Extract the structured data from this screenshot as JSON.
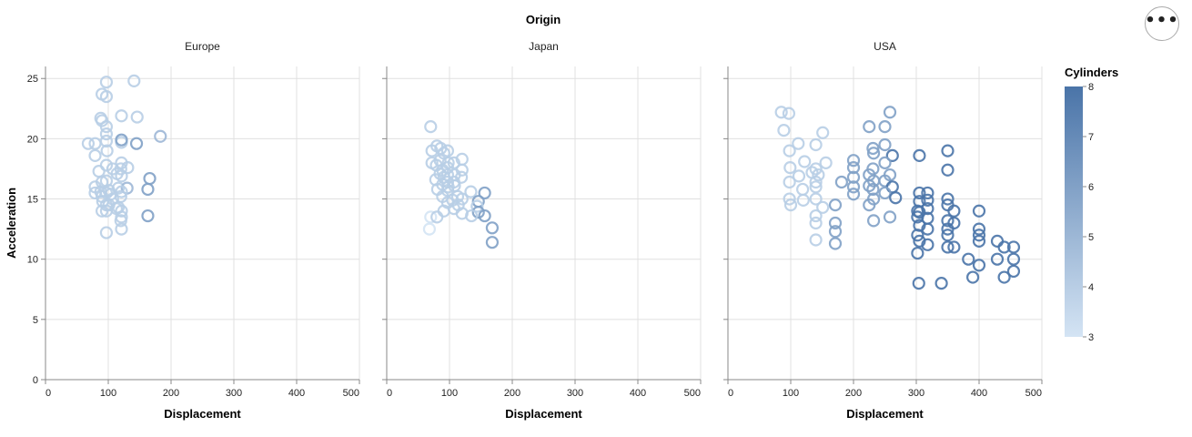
{
  "menu": {
    "icon": "ellipsis-icon",
    "glyph": "•••"
  },
  "chart_data": {
    "type": "scatter",
    "title": "Origin",
    "facet_field": "Origin",
    "facets": [
      "Europe",
      "Japan",
      "USA"
    ],
    "xlabel": "Displacement",
    "ylabel": "Acceleration",
    "xlim": [
      0,
      500
    ],
    "ylim": [
      0,
      26
    ],
    "x_ticks": [
      0,
      100,
      200,
      300,
      400,
      500
    ],
    "y_ticks": [
      0,
      5,
      10,
      15,
      20,
      25
    ],
    "grid": true,
    "color_field": "Cylinders",
    "legend": {
      "title": "Cylinders",
      "ticks": [
        3,
        4,
        5,
        6,
        7,
        8
      ],
      "domain": [
        3,
        8
      ],
      "placement": "right"
    },
    "colors": {
      "low": "#d4e4f4",
      "high": "#4a74a8",
      "axis": "#888888",
      "grid": "#e0e0e0"
    },
    "series": [
      {
        "facet": "Europe",
        "points": [
          [
            97,
            24.7,
            4
          ],
          [
            141,
            24.8,
            4
          ],
          [
            90,
            23.7,
            4
          ],
          [
            97,
            23.5,
            4
          ],
          [
            88,
            21.7,
            4
          ],
          [
            121,
            21.9,
            4
          ],
          [
            146,
            21.8,
            4
          ],
          [
            90,
            21.5,
            4
          ],
          [
            97,
            21,
            4
          ],
          [
            97,
            20.4,
            4
          ],
          [
            68,
            19.6,
            4
          ],
          [
            79,
            19.6,
            4
          ],
          [
            97,
            19.8,
            4
          ],
          [
            121,
            19.7,
            4
          ],
          [
            183,
            20.2,
            5
          ],
          [
            121,
            19.9,
            6
          ],
          [
            145,
            19.6,
            6
          ],
          [
            98,
            19,
            4
          ],
          [
            79,
            18.6,
            4
          ],
          [
            121,
            18,
            4
          ],
          [
            97,
            17.8,
            4
          ],
          [
            85,
            17.3,
            4
          ],
          [
            120,
            17.5,
            4
          ],
          [
            131,
            17.6,
            4
          ],
          [
            107,
            17.5,
            4
          ],
          [
            114,
            17.1,
            4
          ],
          [
            121,
            16.9,
            4
          ],
          [
            166,
            16.7,
            6
          ],
          [
            90,
            16.4,
            4
          ],
          [
            97,
            16.5,
            4
          ],
          [
            79,
            16,
            4
          ],
          [
            116,
            15.9,
            4
          ],
          [
            130,
            15.9,
            5
          ],
          [
            163,
            15.8,
            6
          ],
          [
            101,
            15.7,
            4
          ],
          [
            121,
            15.6,
            4
          ],
          [
            88,
            15.6,
            4
          ],
          [
            79,
            15.5,
            4
          ],
          [
            97,
            15.5,
            4
          ],
          [
            90,
            15.2,
            4
          ],
          [
            104,
            15.4,
            4
          ],
          [
            120,
            15.2,
            4
          ],
          [
            107,
            15,
            4
          ],
          [
            91,
            14.8,
            4
          ],
          [
            97,
            14.5,
            4
          ],
          [
            101,
            14.5,
            4
          ],
          [
            116,
            14.3,
            4
          ],
          [
            121,
            14,
            4
          ],
          [
            90,
            14,
            4
          ],
          [
            97,
            14,
            4
          ],
          [
            113,
            14.2,
            4
          ],
          [
            121,
            13.5,
            4
          ],
          [
            163,
            13.6,
            6
          ],
          [
            120,
            13.2,
            4
          ],
          [
            97,
            12.2,
            4
          ],
          [
            121,
            12.5,
            4
          ]
        ]
      },
      {
        "facet": "Japan",
        "points": [
          [
            70,
            21,
            4
          ],
          [
            80,
            19.4,
            4
          ],
          [
            86,
            19.2,
            4
          ],
          [
            72,
            19,
            4
          ],
          [
            97,
            19,
            4
          ],
          [
            91,
            18.8,
            4
          ],
          [
            120,
            18.3,
            4
          ],
          [
            85,
            18.2,
            4
          ],
          [
            72,
            18,
            4
          ],
          [
            98,
            18,
            4
          ],
          [
            107,
            18,
            4
          ],
          [
            79,
            17.8,
            4
          ],
          [
            97,
            17.6,
            4
          ],
          [
            89,
            17.4,
            4
          ],
          [
            120,
            17.4,
            4
          ],
          [
            85,
            17.1,
            4
          ],
          [
            97,
            17,
            4
          ],
          [
            108,
            17,
            4
          ],
          [
            91,
            16.8,
            4
          ],
          [
            119,
            16.8,
            4
          ],
          [
            78,
            16.6,
            4
          ],
          [
            97,
            16.4,
            4
          ],
          [
            107,
            16.4,
            4
          ],
          [
            89,
            16.2,
            4
          ],
          [
            108,
            16.1,
            4
          ],
          [
            98,
            16,
            4
          ],
          [
            81,
            15.8,
            4
          ],
          [
            97,
            15.7,
            4
          ],
          [
            134,
            15.6,
            4
          ],
          [
            156,
            15.5,
            6
          ],
          [
            113,
            15.2,
            4
          ],
          [
            89,
            15.2,
            4
          ],
          [
            120,
            15,
            4
          ],
          [
            105,
            14.9,
            4
          ],
          [
            146,
            14.8,
            6
          ],
          [
            97,
            14.7,
            4
          ],
          [
            114,
            14.5,
            4
          ],
          [
            144,
            14.4,
            4
          ],
          [
            107,
            14.2,
            4
          ],
          [
            91,
            14,
            4
          ],
          [
            146,
            13.9,
            6
          ],
          [
            120,
            13.8,
            4
          ],
          [
            156,
            13.6,
            6
          ],
          [
            135,
            13.6,
            4
          ],
          [
            70,
            13.5,
            3
          ],
          [
            80,
            13.5,
            4
          ],
          [
            68,
            12.5,
            3
          ],
          [
            168,
            12.6,
            6
          ],
          [
            168,
            11.4,
            6
          ]
        ]
      },
      {
        "facet": "USA",
        "points": [
          [
            85,
            22.2,
            4
          ],
          [
            97,
            22.1,
            4
          ],
          [
            258,
            22.2,
            6
          ],
          [
            225,
            21,
            6
          ],
          [
            250,
            21,
            6
          ],
          [
            89,
            20.7,
            4
          ],
          [
            151,
            20.5,
            4
          ],
          [
            112,
            19.6,
            4
          ],
          [
            140,
            19.5,
            4
          ],
          [
            250,
            19.5,
            6
          ],
          [
            231,
            19.2,
            6
          ],
          [
            98,
            19,
            4
          ],
          [
            350,
            19,
            8
          ],
          [
            232,
            18.8,
            6
          ],
          [
            305,
            18.6,
            8
          ],
          [
            200,
            18.2,
            6
          ],
          [
            262,
            18.6,
            8
          ],
          [
            250,
            18,
            6
          ],
          [
            122,
            18.1,
            4
          ],
          [
            156,
            18,
            4
          ],
          [
            200,
            17.6,
            6
          ],
          [
            140,
            17.5,
            4
          ],
          [
            231,
            17.5,
            6
          ],
          [
            350,
            17.4,
            8
          ],
          [
            99,
            17.6,
            4
          ],
          [
            134,
            17.2,
            4
          ],
          [
            225,
            17,
            6
          ],
          [
            258,
            17,
            6
          ],
          [
            200,
            16.8,
            6
          ],
          [
            113,
            16.9,
            4
          ],
          [
            144,
            17,
            4
          ],
          [
            232,
            16.5,
            6
          ],
          [
            250,
            16.5,
            6
          ],
          [
            181,
            16.4,
            6
          ],
          [
            140,
            16.4,
            4
          ],
          [
            98,
            16.4,
            4
          ],
          [
            225,
            16.1,
            6
          ],
          [
            262,
            16,
            8
          ],
          [
            200,
            16,
            6
          ],
          [
            140,
            16,
            4
          ],
          [
            119,
            15.8,
            4
          ],
          [
            231,
            15.8,
            6
          ],
          [
            250,
            15.5,
            6
          ],
          [
            200,
            15.4,
            6
          ],
          [
            305,
            15.5,
            8
          ],
          [
            318,
            15.5,
            8
          ],
          [
            350,
            15,
            8
          ],
          [
            267,
            15.1,
            8
          ],
          [
            232,
            15,
            6
          ],
          [
            140,
            15,
            4
          ],
          [
            98,
            15,
            4
          ],
          [
            120,
            14.9,
            4
          ],
          [
            318,
            14.9,
            8
          ],
          [
            305,
            14.8,
            8
          ],
          [
            350,
            14.5,
            8
          ],
          [
            225,
            14.5,
            6
          ],
          [
            171,
            14.5,
            6
          ],
          [
            151,
            14.3,
            4
          ],
          [
            100,
            14.5,
            4
          ],
          [
            318,
            14.2,
            8
          ],
          [
            302,
            14,
            8
          ],
          [
            360,
            14,
            8
          ],
          [
            400,
            14,
            8
          ],
          [
            305,
            13.9,
            8
          ],
          [
            258,
            13.5,
            6
          ],
          [
            140,
            13.6,
            4
          ],
          [
            302,
            13.5,
            8
          ],
          [
            318,
            13.4,
            8
          ],
          [
            350,
            13.2,
            8
          ],
          [
            360,
            13,
            8
          ],
          [
            232,
            13.2,
            6
          ],
          [
            171,
            13,
            6
          ],
          [
            140,
            13,
            4
          ],
          [
            305,
            12.8,
            8
          ],
          [
            318,
            12.5,
            8
          ],
          [
            350,
            12.5,
            8
          ],
          [
            400,
            12.5,
            8
          ],
          [
            302,
            12,
            8
          ],
          [
            350,
            12,
            8
          ],
          [
            400,
            12,
            8
          ],
          [
            171,
            12.3,
            6
          ],
          [
            305,
            11.5,
            8
          ],
          [
            318,
            11.2,
            8
          ],
          [
            360,
            11,
            8
          ],
          [
            400,
            11.5,
            8
          ],
          [
            429,
            11.5,
            8
          ],
          [
            350,
            11,
            8
          ],
          [
            455,
            11,
            8
          ],
          [
            440,
            11,
            8
          ],
          [
            140,
            11.6,
            4
          ],
          [
            171,
            11.3,
            6
          ],
          [
            302,
            10.5,
            8
          ],
          [
            383,
            10,
            8
          ],
          [
            429,
            10,
            8
          ],
          [
            455,
            10,
            8
          ],
          [
            400,
            9.5,
            8
          ],
          [
            455,
            9,
            8
          ],
          [
            390,
            8.5,
            8
          ],
          [
            440,
            8.5,
            8
          ],
          [
            304,
            8,
            8
          ],
          [
            340,
            8,
            8
          ]
        ]
      }
    ]
  }
}
